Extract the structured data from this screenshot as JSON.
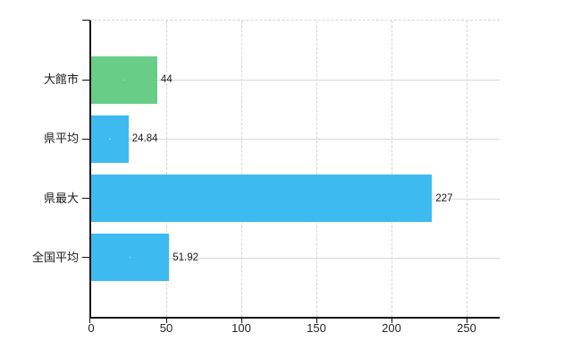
{
  "chart_data": {
    "type": "bar",
    "orientation": "horizontal",
    "title": "",
    "xlabel": "",
    "ylabel": "",
    "categories": [
      "大館市",
      "県平均",
      "県最大",
      "全国平均"
    ],
    "values": [
      44,
      24.84,
      227,
      51.92
    ],
    "value_labels": [
      "44",
      "24.84",
      "227",
      "51.92"
    ],
    "bar_colors": [
      "#68cd86",
      "#3dbbf1",
      "#3dbbf1",
      "#3dbbf1"
    ],
    "x_ticks": [
      0,
      50,
      100,
      150,
      200,
      250
    ],
    "x_tick_labels": [
      "0",
      "50",
      "100",
      "150",
      "200",
      "250"
    ],
    "xlim": [
      0,
      272
    ],
    "grid": true,
    "legend": "none",
    "colors": {
      "axis": "#111111",
      "vertical_gridline": "#d9d2da",
      "horizontal_gridline": "#d5dcd5",
      "text": "#1c1c1c",
      "background": "#ffffff"
    }
  }
}
